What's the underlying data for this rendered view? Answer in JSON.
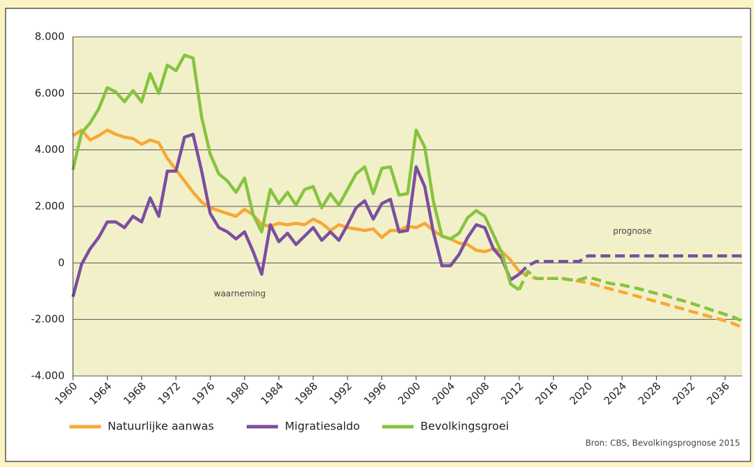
{
  "chart_data": {
    "type": "line",
    "x": [
      1960,
      1961,
      1962,
      1963,
      1964,
      1965,
      1966,
      1967,
      1968,
      1969,
      1970,
      1971,
      1972,
      1973,
      1974,
      1975,
      1976,
      1977,
      1978,
      1979,
      1980,
      1981,
      1982,
      1983,
      1984,
      1985,
      1986,
      1987,
      1988,
      1989,
      1990,
      1991,
      1992,
      1993,
      1994,
      1995,
      1996,
      1997,
      1998,
      1999,
      2000,
      2001,
      2002,
      2003,
      2004,
      2005,
      2006,
      2007,
      2008,
      2009,
      2010,
      2011,
      2012,
      2013,
      2014,
      2015,
      2016,
      2017,
      2018,
      2019,
      2020,
      2021,
      2022,
      2023,
      2024,
      2025,
      2026,
      2027,
      2028,
      2029,
      2030,
      2031,
      2032,
      2033,
      2034,
      2035,
      2036,
      2037,
      2038
    ],
    "series": [
      {
        "name": "Natuurlijke aanwas",
        "color": "#f7a833",
        "values": [
          4500,
          4700,
          4350,
          4500,
          4700,
          4550,
          4450,
          4400,
          4200,
          4350,
          4250,
          3700,
          3300,
          2900,
          2500,
          2150,
          1950,
          1850,
          1750,
          1650,
          1900,
          1700,
          1350,
          1300,
          1400,
          1350,
          1400,
          1350,
          1550,
          1400,
          1150,
          1350,
          1250,
          1200,
          1150,
          1200,
          900,
          1150,
          1150,
          1300,
          1250,
          1400,
          1150,
          950,
          850,
          700,
          650,
          450,
          400,
          500,
          400,
          100,
          -300,
          -450,
          -550,
          -550,
          -550,
          -550,
          -600,
          -650,
          -700,
          -780,
          -870,
          -950,
          -1030,
          -1110,
          -1200,
          -1280,
          -1370,
          -1450,
          -1540,
          -1620,
          -1710,
          -1790,
          -1880,
          -1960,
          -2050,
          -2150,
          -2280
        ]
      },
      {
        "name": "Migratiesaldo",
        "color": "#7b4fa0",
        "values": [
          -1200,
          -50,
          500,
          900,
          1450,
          1450,
          1250,
          1650,
          1450,
          2300,
          1650,
          3250,
          3250,
          4450,
          4550,
          3250,
          1750,
          1250,
          1100,
          850,
          1100,
          400,
          -400,
          1350,
          750,
          1050,
          650,
          950,
          1250,
          800,
          1100,
          800,
          1350,
          1950,
          2200,
          1550,
          2100,
          2250,
          1100,
          1150,
          3400,
          2700,
          1100,
          -100,
          -100,
          300,
          900,
          1350,
          1250,
          500,
          150,
          -600,
          -400,
          -100,
          50,
          50,
          50,
          50,
          50,
          50,
          250,
          250,
          250,
          250,
          250,
          250,
          250,
          250,
          250,
          250,
          250,
          250,
          250,
          250,
          250,
          250,
          250,
          250,
          250
        ]
      },
      {
        "name": "Bevolkingsgroei",
        "color": "#86c440",
        "values": [
          3300,
          4600,
          4950,
          5450,
          6200,
          6050,
          5700,
          6100,
          5700,
          6700,
          6000,
          7000,
          6800,
          7350,
          7250,
          5150,
          3850,
          3150,
          2900,
          2500,
          3000,
          1700,
          1100,
          2600,
          2100,
          2500,
          2050,
          2600,
          2700,
          1950,
          2450,
          2050,
          2600,
          3150,
          3400,
          2450,
          3350,
          3400,
          2400,
          2450,
          4700,
          4100,
          2200,
          950,
          850,
          1050,
          1600,
          1850,
          1650,
          1000,
          350,
          -750,
          -950,
          -300,
          -550,
          -550,
          -550,
          -550,
          -600,
          -600,
          -500,
          -580,
          -680,
          -750,
          -780,
          -850,
          -920,
          -1000,
          -1080,
          -1150,
          -1250,
          -1330,
          -1420,
          -1520,
          -1620,
          -1720,
          -1820,
          -1920,
          -2050
        ]
      }
    ],
    "forecast_from": 2012,
    "xlim": [
      1960,
      2038
    ],
    "xticks": [
      1960,
      1964,
      1968,
      1972,
      1976,
      1980,
      1984,
      1988,
      1992,
      1996,
      2000,
      2004,
      2008,
      2012,
      2016,
      2020,
      2024,
      2028,
      2032,
      2036
    ],
    "ylim": [
      -4000,
      8000
    ],
    "yticks": [
      {
        "value": -4000,
        "label": "-4.000"
      },
      {
        "value": -2000,
        "label": "-2.000"
      },
      0,
      {
        "value": 2000,
        "label": "2.000"
      },
      {
        "value": 4000,
        "label": "4.000"
      },
      {
        "value": 6000,
        "label": "6.000"
      },
      {
        "value": 8000,
        "label": "8.000"
      }
    ],
    "grid": true,
    "annotations": [
      "waarneming",
      "prognose"
    ],
    "source": "Bron: CBS, Bevolkingsprognose 2015"
  }
}
